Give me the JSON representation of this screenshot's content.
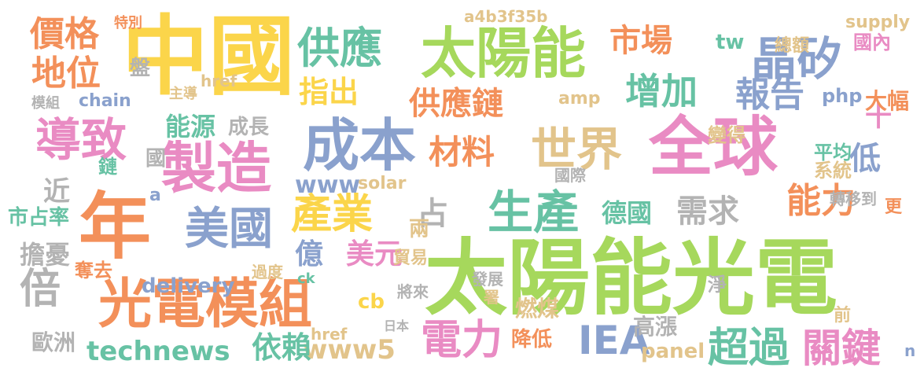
{
  "palette": {
    "yellow": "#fbd54a",
    "green": "#a6d85c",
    "orange": "#f3905a",
    "pink": "#e98bc3",
    "blue": "#8aa1cd",
    "teal": "#67c2a4",
    "tan": "#e2c48b",
    "gray": "#b3b3b3"
  },
  "words": [
    "中國",
    "太陽能光電",
    "全球",
    "太陽能",
    "年",
    "製造",
    "成本",
    "光電模組",
    "供應",
    "世界",
    "美國",
    "晶矽",
    "生產",
    "增加",
    "IEA",
    "導致",
    "價格",
    "地位",
    "市場",
    "供應鏈",
    "指出",
    "產業",
    "材料",
    "電力",
    "超過",
    "關鍵",
    "報告",
    "倍",
    "需求",
    "能力",
    "www",
    "technews",
    "www5",
    "依賴",
    "億",
    "美元",
    "低",
    "近",
    "十",
    "tw",
    "國內",
    "總額",
    "supply",
    "a4b3f35b",
    "特別",
    "a4b3f35b",
    "chain",
    "amp",
    "php",
    "大幅",
    "平均",
    "變得",
    "系統",
    "轉移到",
    "更",
    "德國",
    "占",
    "兩",
    "貿易",
    "solar",
    "燃煤",
    "降低",
    "高漲",
    "panel",
    "日本",
    "cb",
    "將來",
    "前",
    "淨",
    "發展",
    "署",
    "歐洲",
    "擔憂",
    "奪去",
    "delivery",
    "過度",
    "國",
    "鏈",
    "a",
    "市占率",
    "成長",
    "主導",
    "模組",
    "能源",
    "href",
    "盤",
    "href",
    "國際",
    "n",
    "ck"
  ]
}
